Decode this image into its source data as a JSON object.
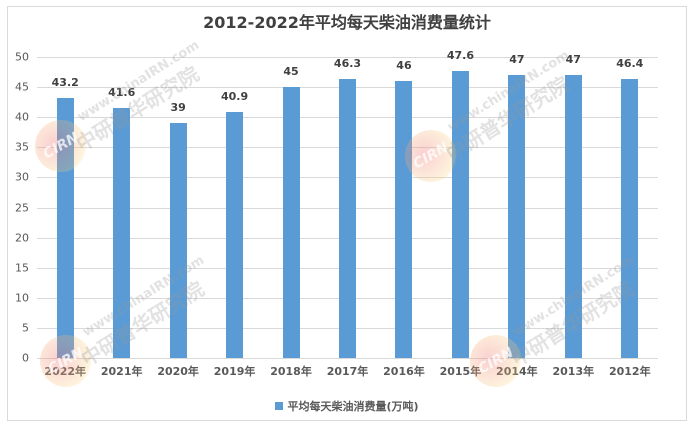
{
  "chart_data": {
    "type": "bar",
    "title": "2012-2022年平均每天柴油消费量统计",
    "xlabel": "",
    "ylabel": "",
    "categories": [
      "2022年",
      "2021年",
      "2020年",
      "2019年",
      "2018年",
      "2017年",
      "2016年",
      "2015年",
      "2014年",
      "2013年",
      "2012年"
    ],
    "series": [
      {
        "name": "平均每天柴油消费量(万吨)",
        "color": "#5b9bd5",
        "values": [
          43.2,
          41.6,
          39,
          40.9,
          45,
          46.3,
          46,
          47.6,
          47,
          47,
          46.4
        ]
      }
    ],
    "data_labels": [
      "43.2",
      "41.6",
      "39",
      "40.9",
      "45",
      "46.3",
      "46",
      "47.6",
      "47",
      "47",
      "46.4"
    ],
    "ylim": [
      0,
      50
    ],
    "yticks": [
      "0",
      "5",
      "10",
      "15",
      "20",
      "25",
      "30",
      "35",
      "40",
      "45",
      "50"
    ],
    "grid": true,
    "legend_position": "bottom"
  },
  "watermark": {
    "logo_text": "CIRN",
    "url_text": "www.chinaIRN.com",
    "name_text": "中研普华研究院"
  }
}
